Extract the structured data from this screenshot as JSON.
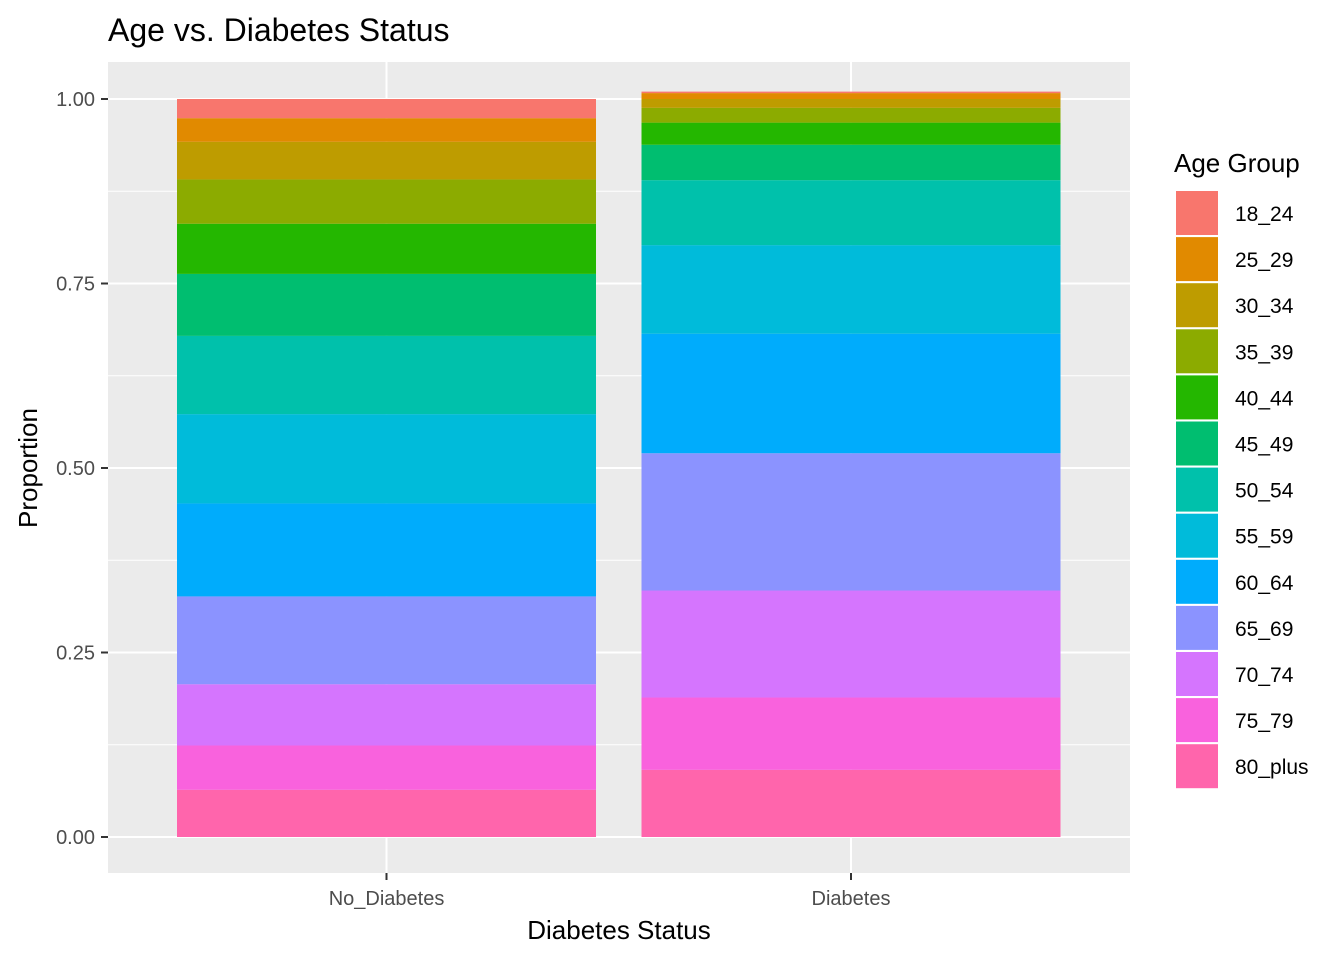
{
  "chart_data": {
    "type": "bar",
    "stacked": true,
    "title": "Age vs. Diabetes Status",
    "xlabel": "Diabetes Status",
    "ylabel": "Proportion",
    "ylim": [
      0,
      1
    ],
    "yticks": [
      "0.00",
      "0.25",
      "0.50",
      "0.75",
      "1.00"
    ],
    "grid": true,
    "legend_position": "right",
    "legend_title": "Age Group",
    "categories": [
      "No_Diabetes",
      "Diabetes"
    ],
    "series": [
      {
        "name": "18_24",
        "color": "#F8766D",
        "values": [
          0.026,
          0.002
        ]
      },
      {
        "name": "25_29",
        "color": "#E18A00",
        "values": [
          0.032,
          0.008
        ]
      },
      {
        "name": "30_34",
        "color": "#BE9C00",
        "values": [
          0.051,
          0.012
        ]
      },
      {
        "name": "35_39",
        "color": "#8CAB00",
        "values": [
          0.06,
          0.02
        ]
      },
      {
        "name": "40_44",
        "color": "#24B700",
        "values": [
          0.068,
          0.03
        ]
      },
      {
        "name": "45_49",
        "color": "#00BE70",
        "values": [
          0.084,
          0.048
        ]
      },
      {
        "name": "50_54",
        "color": "#00C1AB",
        "values": [
          0.106,
          0.088
        ]
      },
      {
        "name": "55_59",
        "color": "#00BBDA",
        "values": [
          0.121,
          0.12
        ]
      },
      {
        "name": "60_64",
        "color": "#00ACFC",
        "values": [
          0.126,
          0.162
        ]
      },
      {
        "name": "65_69",
        "color": "#8B93FF",
        "values": [
          0.119,
          0.186
        ]
      },
      {
        "name": "70_74",
        "color": "#D575FE",
        "values": [
          0.083,
          0.145
        ]
      },
      {
        "name": "75_79",
        "color": "#F962DD",
        "values": [
          0.06,
          0.098
        ]
      },
      {
        "name": "80_plus",
        "color": "#FF65AC",
        "values": [
          0.064,
          0.091
        ]
      }
    ]
  }
}
